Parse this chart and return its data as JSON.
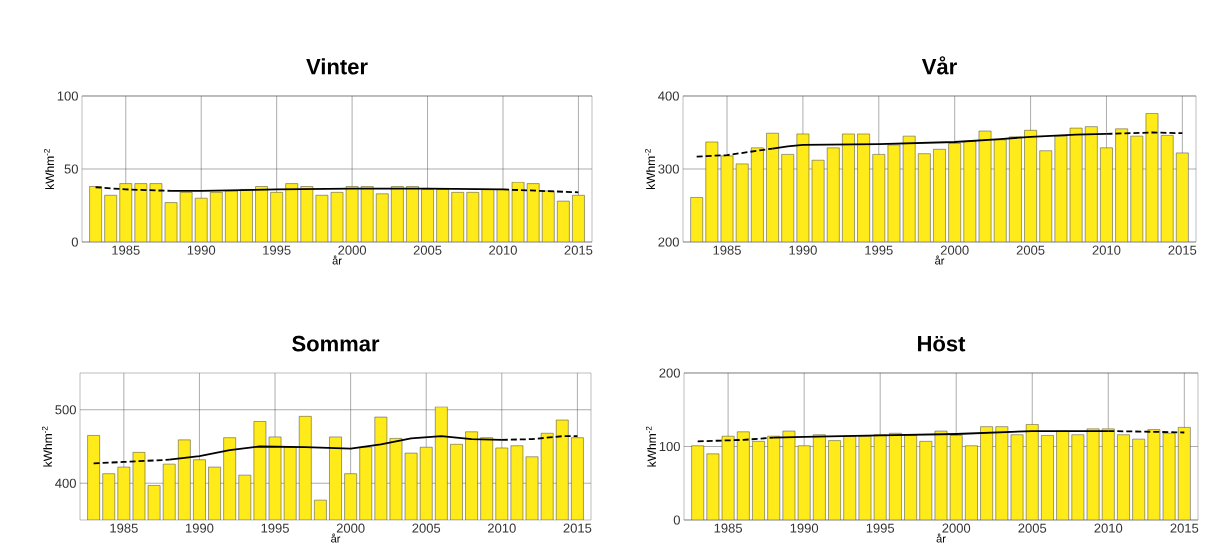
{
  "chart_data": [
    {
      "type": "bar",
      "title": "Vinter",
      "xlabel": "år",
      "ylabel": "kWhm$^{-2}$",
      "grid": true,
      "x": [
        1983,
        1984,
        1985,
        1986,
        1987,
        1988,
        1989,
        1990,
        1991,
        1992,
        1993,
        1994,
        1995,
        1996,
        1997,
        1998,
        1999,
        2000,
        2001,
        2002,
        2003,
        2004,
        2005,
        2006,
        2007,
        2008,
        2009,
        2010,
        2011,
        2012,
        2013,
        2014,
        2015
      ],
      "xlim": [
        1982.1,
        2015.9
      ],
      "xticks": [
        1985,
        1990,
        1995,
        2000,
        2005,
        2010,
        2015
      ],
      "ylim": [
        0,
        100
      ],
      "yticks": [
        0,
        50,
        100
      ],
      "series": [
        {
          "color": "#ffea1a",
          "values": [
            38,
            32,
            40,
            40,
            40,
            27,
            34,
            30,
            34,
            35,
            36,
            38,
            34,
            40,
            38,
            32,
            34,
            38,
            38,
            33,
            38,
            38,
            36,
            36,
            34,
            34,
            36,
            36,
            41,
            40,
            35,
            28,
            32
          ]
        },
        {
          "type": "line",
          "color": "#000000",
          "line_style": "dashed",
          "x": [
            1983,
            1985,
            1988
          ],
          "values": [
            37.5,
            36,
            35
          ]
        },
        {
          "type": "line",
          "color": "#000000",
          "line_style": "solid",
          "x": [
            1988,
            1990,
            1995,
            2000,
            2005,
            2010
          ],
          "values": [
            35,
            35,
            36,
            36.5,
            36.5,
            36
          ]
        },
        {
          "type": "line",
          "color": "#000000",
          "line_style": "dashed",
          "x": [
            2010,
            2015
          ],
          "values": [
            36,
            34
          ]
        }
      ]
    },
    {
      "type": "bar",
      "title": "Vår",
      "xlabel": "år",
      "ylabel": "kWhm$^{-2}$",
      "grid": true,
      "x": [
        1983,
        1984,
        1985,
        1986,
        1987,
        1988,
        1989,
        1990,
        1991,
        1992,
        1993,
        1994,
        1995,
        1996,
        1997,
        1998,
        1999,
        2000,
        2001,
        2002,
        2003,
        2004,
        2005,
        2006,
        2007,
        2008,
        2009,
        2010,
        2011,
        2012,
        2013,
        2014,
        2015
      ],
      "xlim": [
        1982.1,
        2015.9
      ],
      "xticks": [
        1985,
        1990,
        1995,
        2000,
        2005,
        2010,
        2015
      ],
      "ylim": [
        200,
        400
      ],
      "yticks": [
        200,
        300,
        400
      ],
      "series": [
        {
          "color": "#ffea1a",
          "values": [
            261,
            337,
            318,
            307,
            329,
            349,
            320,
            348,
            312,
            329,
            348,
            348,
            320,
            333,
            345,
            321,
            327,
            335,
            338,
            352,
            340,
            344,
            353,
            325,
            345,
            356,
            358,
            329,
            355,
            345,
            376,
            346,
            322
          ]
        },
        {
          "type": "line",
          "color": "#000000",
          "line_style": "dashed",
          "x": [
            1983,
            1985,
            1987,
            1988
          ],
          "values": [
            317,
            319,
            325,
            328
          ]
        },
        {
          "type": "line",
          "color": "#000000",
          "line_style": "solid",
          "x": [
            1988,
            1989,
            1990,
            1995,
            2000,
            2003,
            2005,
            2008,
            2010
          ],
          "values": [
            328,
            331,
            333,
            334,
            337,
            341,
            344,
            347,
            348
          ]
        },
        {
          "type": "line",
          "color": "#000000",
          "line_style": "dashed",
          "x": [
            2010,
            2013,
            2015
          ],
          "values": [
            348,
            350,
            349
          ]
        }
      ]
    },
    {
      "type": "bar",
      "title": "Sommar",
      "xlabel": "år",
      "ylabel": "kWhm$^{-2}$",
      "grid": true,
      "x": [
        1983,
        1984,
        1985,
        1986,
        1987,
        1988,
        1989,
        1990,
        1991,
        1992,
        1993,
        1994,
        1995,
        1996,
        1997,
        1998,
        1999,
        2000,
        2001,
        2002,
        2003,
        2004,
        2005,
        2006,
        2007,
        2008,
        2009,
        2010,
        2011,
        2012,
        2013,
        2014,
        2015
      ],
      "xlim": [
        1982.1,
        2015.9
      ],
      "xticks": [
        1985,
        1990,
        1995,
        2000,
        2005,
        2010,
        2015
      ],
      "ylim": [
        350,
        550
      ],
      "yticks": [
        400,
        500
      ],
      "series": [
        {
          "color": "#ffea1a",
          "values": [
            465,
            413,
            422,
            442,
            397,
            426,
            459,
            432,
            422,
            462,
            411,
            484,
            463,
            449,
            491,
            377,
            463,
            413,
            449,
            490,
            461,
            441,
            449,
            504,
            453,
            470,
            462,
            448,
            451,
            436,
            468,
            486,
            462
          ]
        },
        {
          "type": "line",
          "color": "#000000",
          "line_style": "dashed",
          "x": [
            1983,
            1985,
            1988
          ],
          "values": [
            427,
            429,
            432
          ]
        },
        {
          "type": "line",
          "color": "#000000",
          "line_style": "solid",
          "x": [
            1988,
            1990,
            1992,
            1994,
            1997,
            2000,
            2002,
            2004,
            2006,
            2008,
            2010
          ],
          "values": [
            432,
            437,
            445,
            450,
            449,
            447,
            453,
            461,
            464,
            460,
            459
          ]
        },
        {
          "type": "line",
          "color": "#000000",
          "line_style": "dashed",
          "x": [
            2010,
            2012,
            2014,
            2015
          ],
          "values": [
            459,
            460,
            464,
            464
          ]
        }
      ]
    },
    {
      "type": "bar",
      "title": "Höst",
      "xlabel": "år",
      "ylabel": "kWhm$^{-2}$",
      "grid": true,
      "x": [
        1983,
        1984,
        1985,
        1986,
        1987,
        1988,
        1989,
        1990,
        1991,
        1992,
        1993,
        1994,
        1995,
        1996,
        1997,
        1998,
        1999,
        2000,
        2001,
        2002,
        2003,
        2004,
        2005,
        2006,
        2007,
        2008,
        2009,
        2010,
        2011,
        2012,
        2013,
        2014,
        2015
      ],
      "xlim": [
        1982.1,
        2015.9
      ],
      "xticks": [
        1985,
        1990,
        1995,
        2000,
        2005,
        2010,
        2015
      ],
      "ylim": [
        0,
        200
      ],
      "yticks": [
        0,
        100,
        200
      ],
      "series": [
        {
          "color": "#ffea1a",
          "values": [
            101,
            90,
            114,
            120,
            107,
            114,
            121,
            101,
            116,
            108,
            114,
            114,
            116,
            118,
            115,
            107,
            121,
            115,
            101,
            127,
            127,
            116,
            130,
            115,
            121,
            116,
            124,
            124,
            116,
            110,
            123,
            118,
            126
          ]
        },
        {
          "type": "line",
          "color": "#000000",
          "line_style": "dashed",
          "x": [
            1983,
            1986,
            1988
          ],
          "values": [
            107,
            109,
            112
          ]
        },
        {
          "type": "line",
          "color": "#000000",
          "line_style": "solid",
          "x": [
            1988,
            1990,
            1995,
            2000,
            2005,
            2010
          ],
          "values": [
            112,
            113,
            115,
            117,
            121,
            121
          ]
        },
        {
          "type": "line",
          "color": "#000000",
          "line_style": "dashed",
          "x": [
            2010,
            2013,
            2015
          ],
          "values": [
            121,
            120,
            119
          ]
        }
      ]
    }
  ]
}
